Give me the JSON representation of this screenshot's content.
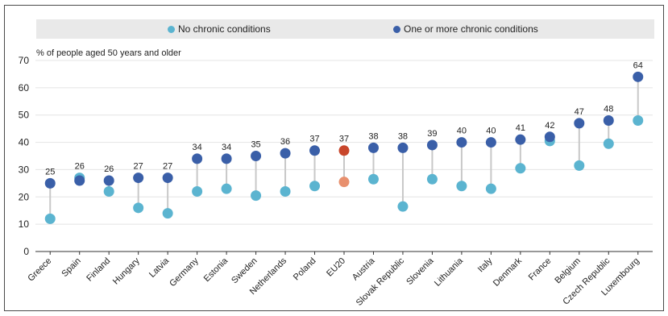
{
  "legend": {
    "no_chronic": "No chronic conditions",
    "one_or_more": "One or more chronic conditions"
  },
  "colors": {
    "no_chronic": "#5bb4d0",
    "one_or_more": "#3a5fa8",
    "eu_no_chronic": "#e8906e",
    "eu_one_or_more": "#c8462b",
    "connector": "#c8c8c8"
  },
  "chart_data": {
    "type": "scatter",
    "ylabel": "% of people aged 50 years and older",
    "ylim": [
      0,
      70
    ],
    "yticks": [
      0,
      10,
      20,
      30,
      40,
      50,
      60,
      70
    ],
    "categories": [
      "Greece",
      "Spain",
      "Finland",
      "Hungary",
      "Latvia",
      "Germany",
      "Estonia",
      "Sweden",
      "Netherlands",
      "Poland",
      "EU20",
      "Austria",
      "Slovak Republic",
      "Slovenia",
      "Lithuania",
      "Italy",
      "Denmark",
      "France",
      "Belgium",
      "Czech Republic",
      "Luxembourg"
    ],
    "highlight": "EU20",
    "series": [
      {
        "name": "No chronic conditions",
        "values": [
          12,
          27,
          22,
          16,
          14,
          22,
          23,
          20.5,
          22,
          24,
          25.5,
          26.5,
          16.5,
          26.5,
          24,
          23,
          30.5,
          40.5,
          31.5,
          39.5,
          48
        ]
      },
      {
        "name": "One or more chronic conditions",
        "values": [
          25,
          26,
          26,
          27,
          27,
          34,
          34,
          35,
          36,
          37,
          37,
          38,
          38,
          39,
          40,
          40,
          41,
          42,
          47,
          48,
          64
        ]
      }
    ],
    "data_labels": [
      "25",
      "26",
      "26",
      "27",
      "27",
      "34",
      "34",
      "35",
      "36",
      "37",
      "37",
      "38",
      "38",
      "39",
      "40",
      "40",
      "41",
      "42",
      "47",
      "48",
      "64"
    ],
    "legend_position": "top",
    "grid": true
  }
}
